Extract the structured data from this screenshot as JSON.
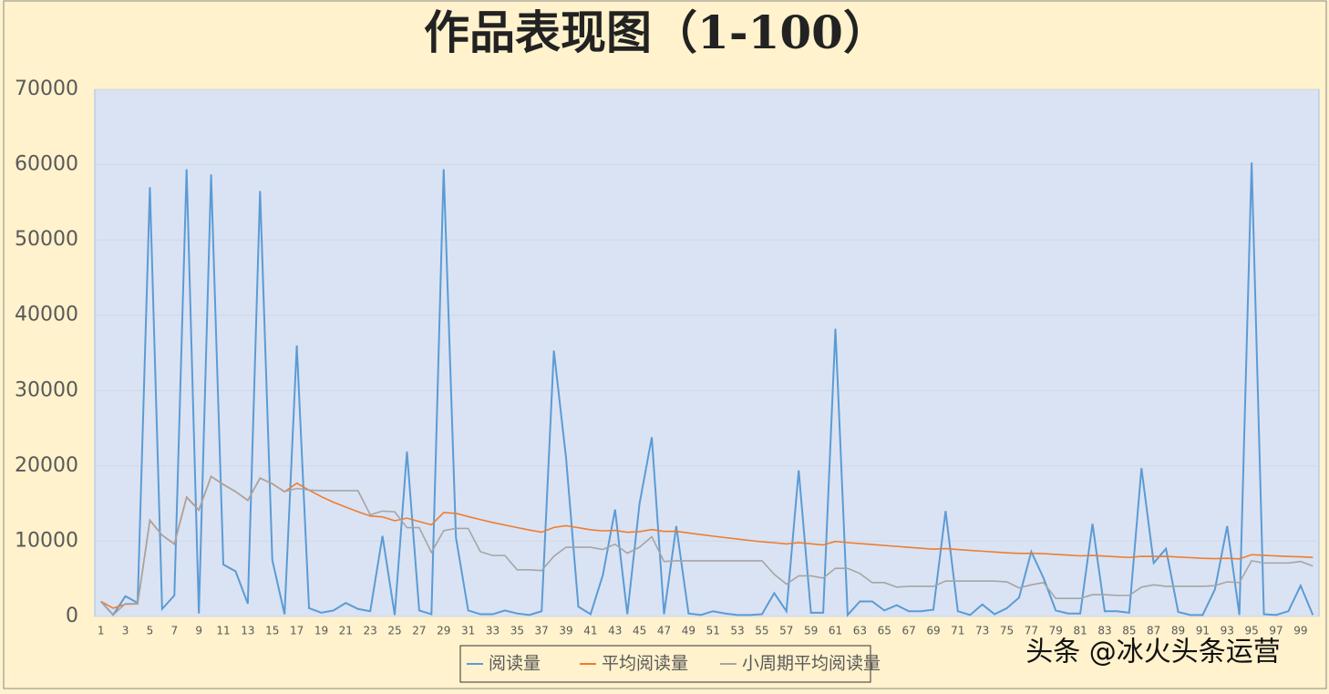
{
  "chart_data": {
    "type": "line",
    "title": "作品表现图（1-100）",
    "watermark": "头条 @冰火头条运营",
    "categories": [
      1,
      null,
      3,
      null,
      5,
      null,
      7,
      null,
      9,
      null,
      11,
      null,
      13,
      null,
      15,
      null,
      17,
      null,
      19,
      null,
      21,
      null,
      23,
      null,
      25,
      null,
      27,
      null,
      29,
      null,
      31,
      null,
      33,
      null,
      35,
      null,
      37,
      null,
      39,
      null,
      41,
      null,
      43,
      null,
      45,
      null,
      47,
      null,
      49,
      null,
      51,
      null,
      53,
      null,
      55,
      null,
      57,
      null,
      59,
      null,
      61,
      null,
      63,
      null,
      65,
      null,
      67,
      null,
      69,
      null,
      71,
      null,
      73,
      null,
      75,
      null,
      77,
      null,
      79,
      null,
      81,
      null,
      83,
      null,
      85,
      null,
      87,
      null,
      89,
      null,
      91,
      null,
      93,
      null,
      95,
      null,
      97,
      null,
      99,
      null
    ],
    "series": [
      {
        "name": "阅读量",
        "color": "#5b9bd5",
        "values": [
          2000,
          200,
          2700,
          1800,
          57000,
          1000,
          2800,
          59400,
          400,
          58700,
          6900,
          6000,
          1700,
          56500,
          7500,
          300,
          36000,
          1100,
          500,
          800,
          1800,
          1000,
          700,
          10700,
          200,
          21900,
          800,
          300,
          59400,
          10500,
          800,
          300,
          300,
          800,
          400,
          200,
          700,
          35300,
          21000,
          1300,
          300,
          5500,
          14200,
          300,
          15000,
          23800,
          300,
          12000,
          400,
          200,
          700,
          400,
          200,
          200,
          300,
          3100,
          700,
          19400,
          500,
          500,
          38200,
          200,
          2000,
          2000,
          800,
          1500,
          700,
          700,
          900,
          14000,
          700,
          200,
          1600,
          300,
          1100,
          2500,
          8600,
          5100,
          800,
          400,
          400,
          12300,
          700,
          700,
          500,
          19700,
          7100,
          9000,
          600,
          200,
          200,
          3600,
          12000,
          200,
          60300,
          300,
          200,
          700,
          4100,
          200
        ]
      },
      {
        "name": "平均阅读量",
        "color": "#ed7d31",
        "values": [
          2000,
          1100,
          1633,
          1675,
          12740,
          10783,
          9643,
          15863,
          14144,
          18600,
          17536,
          16575,
          15431,
          18364,
          17640,
          16556,
          17700,
          16778,
          15921,
          15165,
          14529,
          13914,
          13339,
          13229,
          12708,
          13062,
          12607,
          12168,
          13797,
          13687,
          13271,
          12866,
          12485,
          12141,
          11806,
          11483,
          11192,
          11826,
          12062,
          11793,
          11512,
          11369,
          11435,
          11182,
          11267,
          11539,
          11300,
          11315,
          11092,
          10874,
          10675,
          10477,
          10283,
          10096,
          9918,
          9796,
          9637,
          9805,
          9647,
          9495,
          9966,
          9808,
          9684,
          9564,
          9429,
          9309,
          9181,
          9056,
          8938,
          9010,
          8893,
          8772,
          8674,
          8561,
          8461,
          8383,
          8386,
          8344,
          8248,
          8150,
          8054,
          8106,
          8017,
          7930,
          7842,
          7980,
          7970,
          7982,
          7899,
          7813,
          7730,
          7685,
          7731,
          7651,
          8205,
          8123,
          8041,
          7966,
          7927,
          7850
        ]
      },
      {
        "name": "小周期平均阅读量",
        "color": "#a5a5a5",
        "values": [
          2000,
          200,
          1700,
          1700,
          12800,
          10800,
          9600,
          15800,
          14100,
          18600,
          17500,
          16600,
          15400,
          18400,
          17600,
          16600,
          17000,
          16800,
          16700,
          16700,
          16700,
          16700,
          13500,
          14000,
          13900,
          11800,
          11800,
          8500,
          11400,
          11700,
          11700,
          8600,
          8100,
          8100,
          6200,
          6200,
          6100,
          8000,
          9200,
          9200,
          9200,
          8900,
          9600,
          8400,
          9200,
          10600,
          7300,
          7400,
          7400,
          7400,
          7400,
          7400,
          7400,
          7400,
          7400,
          5600,
          4300,
          5400,
          5400,
          5100,
          6400,
          6400,
          5700,
          4500,
          4500,
          3900,
          4000,
          4000,
          4000,
          4700,
          4700,
          4700,
          4700,
          4700,
          4600,
          3800,
          4200,
          4500,
          2400,
          2400,
          2400,
          2900,
          2900,
          2800,
          2800,
          3900,
          4200,
          4000,
          4000,
          4000,
          4000,
          4100,
          4600,
          4500,
          7400,
          7100,
          7100,
          7100,
          7300,
          6700
        ]
      }
    ],
    "ylim": [
      0,
      70000
    ],
    "yticks": [
      0,
      10000,
      20000,
      30000,
      40000,
      50000,
      60000,
      70000
    ],
    "grid": true,
    "legend": "bottom"
  }
}
